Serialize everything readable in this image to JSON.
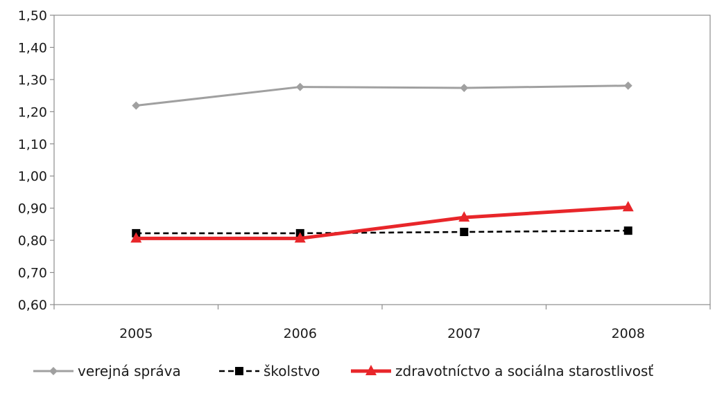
{
  "chart_data": {
    "type": "line",
    "categories": [
      "2005",
      "2006",
      "2007",
      "2008"
    ],
    "ylim": [
      0.6,
      1.5
    ],
    "yticks": [
      "0,60",
      "0,70",
      "0,80",
      "0,90",
      "1,00",
      "1,10",
      "1,20",
      "1,30",
      "1,40",
      "1,50"
    ],
    "grid": false,
    "legend_position": "bottom",
    "series": [
      {
        "name": "verejná správa",
        "values": [
          1.219,
          1.277,
          1.274,
          1.281
        ],
        "color": "#a0a0a0",
        "marker": "diamond",
        "dash": "solid"
      },
      {
        "name": "školstvo",
        "values": [
          0.822,
          0.822,
          0.826,
          0.83
        ],
        "color": "#000000",
        "marker": "square",
        "dash": "dashed"
      },
      {
        "name": "zdravotníctvo a sociálna starostlivosť",
        "values": [
          0.806,
          0.806,
          0.871,
          0.903
        ],
        "color": "#e8262a",
        "marker": "triangle",
        "dash": "solid"
      }
    ]
  }
}
